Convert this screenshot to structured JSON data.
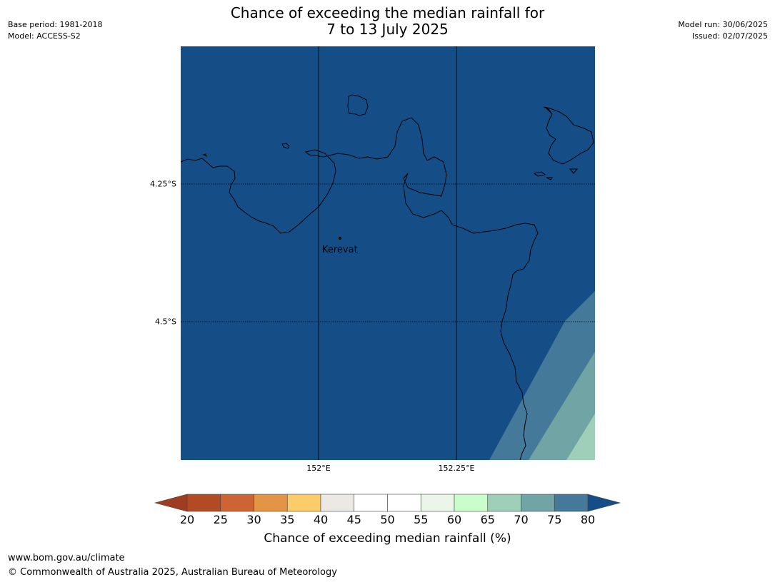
{
  "title": {
    "line1": "Chance of exceeding the median rainfall for",
    "line2": "7 to 13 July 2025"
  },
  "meta_left": {
    "base_period": "Base period: 1981-2018",
    "model": "Model: ACCESS-S2"
  },
  "meta_right": {
    "model_run": "Model run: 30/06/2025",
    "issued": "Issued: 02/07/2025"
  },
  "map": {
    "place_label": "Kerevat",
    "lat_labels": [
      "4.25°S",
      "4.5°S"
    ],
    "lon_labels": [
      "152°E",
      "152.25°E"
    ],
    "probability_zones": [
      {
        "range": ">80",
        "color": "#154e87"
      },
      {
        "range": "75-80",
        "color": "#44799a"
      },
      {
        "range": "70-75",
        "color": "#71a4a4"
      },
      {
        "range": "65-70",
        "color": "#9fcfb8"
      }
    ]
  },
  "colorbar": {
    "ticks": [
      "20",
      "25",
      "30",
      "35",
      "40",
      "45",
      "50",
      "55",
      "60",
      "65",
      "70",
      "75",
      "80"
    ],
    "colors": [
      "#9e3d21",
      "#b24a24",
      "#cd6433",
      "#e39545",
      "#fdcc6a",
      "#ece9e5",
      "#ffffff",
      "#ffffff",
      "#e9f6e8",
      "#c9fdc9",
      "#9fcfb8",
      "#71a4a4",
      "#44799a",
      "#154e87"
    ],
    "label": "Chance of exceeding median rainfall (%)"
  },
  "footer": {
    "url": "www.bom.gov.au/climate",
    "copyright": "© Commonwealth of Australia 2025, Australian Bureau of Meteorology"
  }
}
